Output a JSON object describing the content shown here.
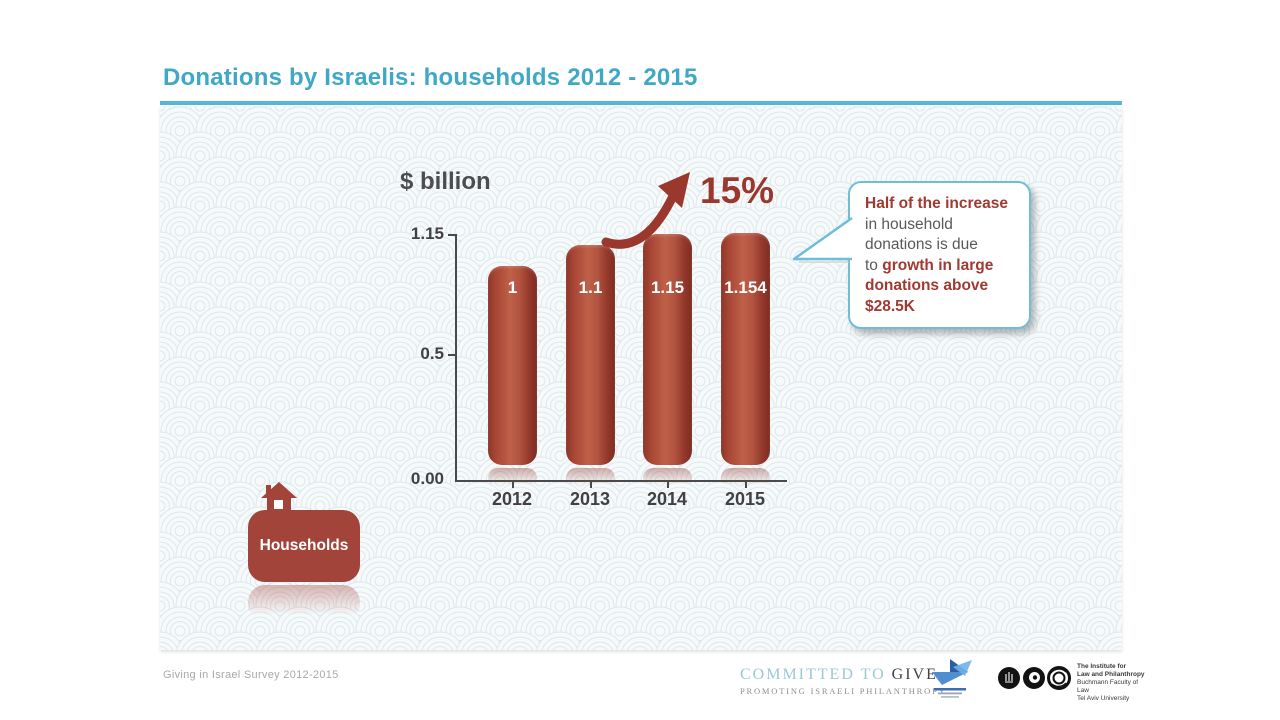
{
  "title": "Donations by Israelis: households 2012 - 2015",
  "chart_data": {
    "type": "bar",
    "title": "Donations by Israelis: households 2012 - 2015",
    "ylabel": "$ billion",
    "xlabel": "",
    "categories": [
      "2012",
      "2013",
      "2014",
      "2015"
    ],
    "values": [
      1,
      1.1,
      1.15,
      1.154
    ],
    "bar_labels": [
      "1",
      "1.1",
      "1.15",
      "1.154"
    ],
    "yticks": [
      "1.15",
      "0.5",
      "0.00"
    ],
    "ylim": [
      0,
      1.15
    ],
    "grid": false,
    "legend": null,
    "growth_annotation": "15%"
  },
  "callout": {
    "line1": "Half of the increase",
    "line2": "in household",
    "line3": "donations is due",
    "line4_prefix": "to ",
    "line4_emphasis": "growth in large",
    "line5": "donations above",
    "line6": "$28.5K"
  },
  "badge": {
    "label": "Households"
  },
  "footer": {
    "source_note": "Giving in Israel Survey 2012-2015",
    "committed_to_give": {
      "line1_light": "COMMITTED TO ",
      "line1_dark": "GIVE",
      "line2": "PROMOTING ISRAELI PHILANTHROPY"
    },
    "institute": {
      "line1": "The Institute for",
      "line2": "Law and Philanthropy",
      "line3": "Buchmann Faculty of Law",
      "line4": "Tel Aviv University"
    }
  },
  "colors": {
    "title_blue": "#3ea8c6",
    "rule_blue": "#55b7d4",
    "bar_red": "#a3443b",
    "annotation_red": "#9b382d",
    "text_gray": "#58595b",
    "callout_border": "#6fbed8",
    "pattern_line": "#dde8ee"
  }
}
